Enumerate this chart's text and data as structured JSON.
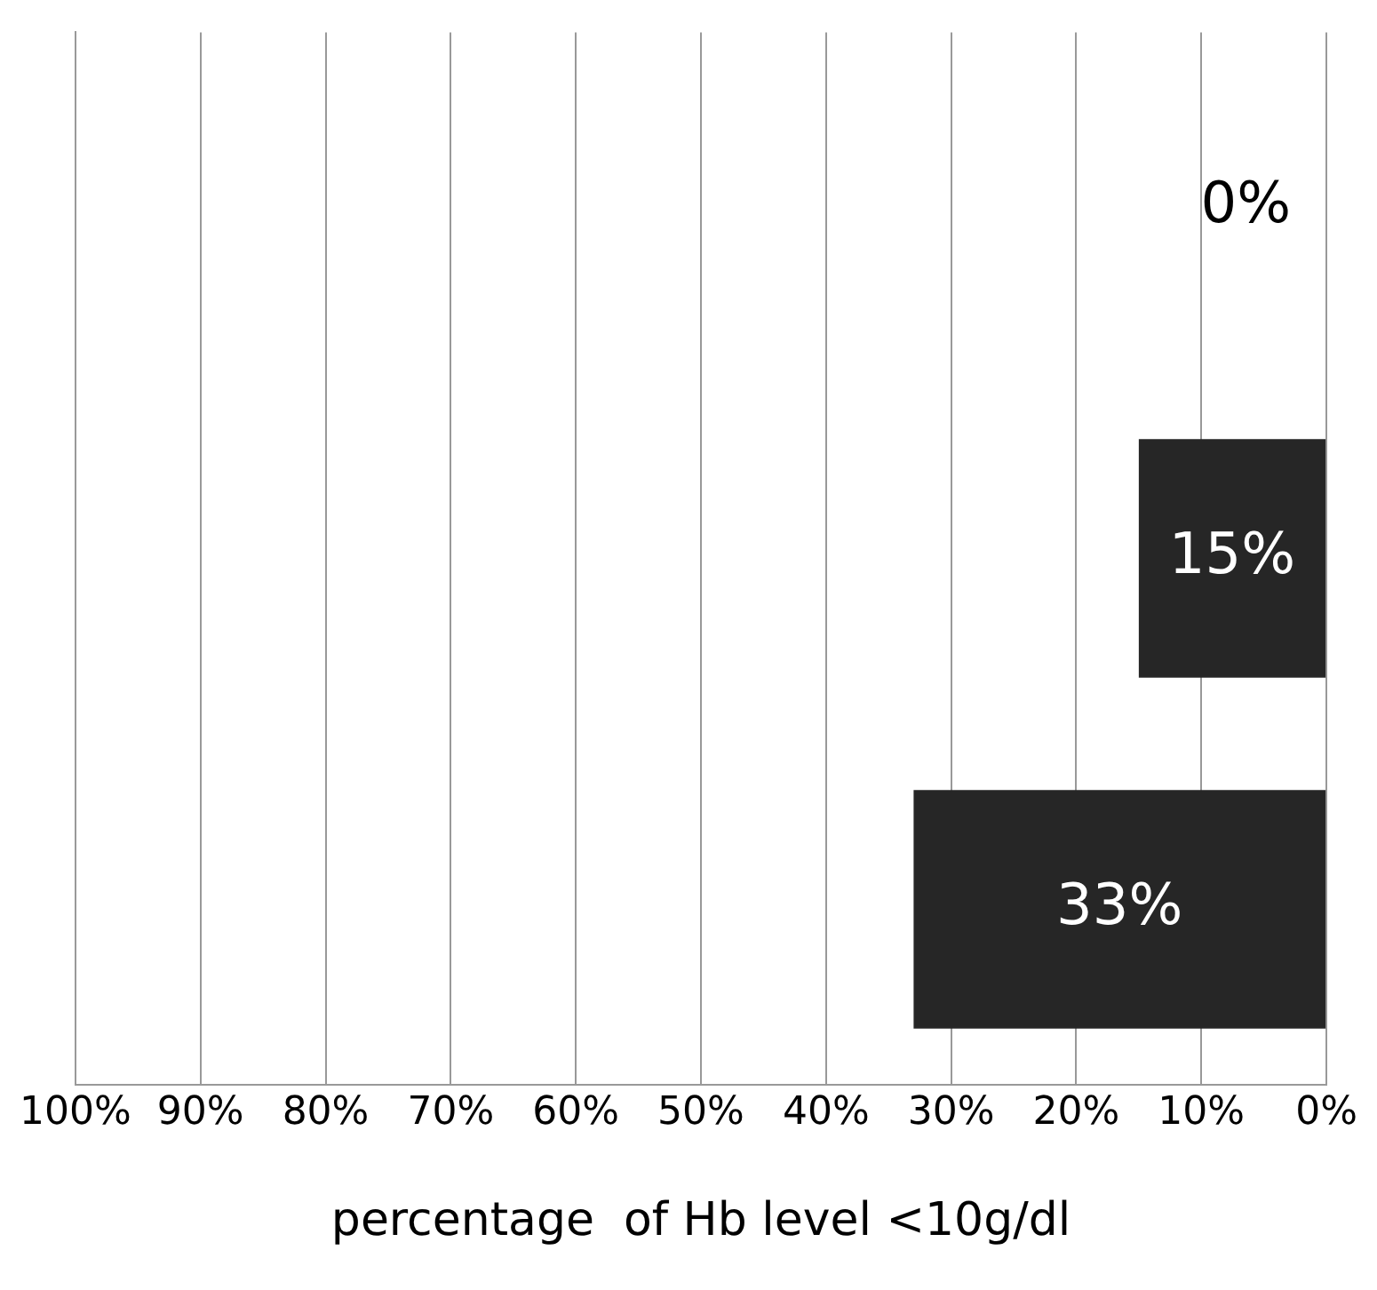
{
  "chart_data": {
    "type": "bar",
    "orientation": "horizontal",
    "xlabel": "percentage  of Hb level <10g/dl",
    "categories": [
      null,
      null,
      null
    ],
    "values": [
      0,
      15,
      33
    ],
    "value_labels": [
      "0%",
      "15%",
      "33%"
    ],
    "color": "#262626",
    "xlim": [
      100,
      0
    ],
    "xticks": [
      {
        "value": 100,
        "label": "100%"
      },
      {
        "value": 90,
        "label": "90%"
      },
      {
        "value": 80,
        "label": "80%"
      },
      {
        "value": 70,
        "label": "70%"
      },
      {
        "value": 60,
        "label": "60%"
      },
      {
        "value": 50,
        "label": "50%"
      },
      {
        "value": 40,
        "label": "40%"
      },
      {
        "value": 30,
        "label": "30%"
      },
      {
        "value": 20,
        "label": "20%"
      },
      {
        "value": 10,
        "label": "10%"
      },
      {
        "value": 0,
        "label": "0%"
      }
    ],
    "grid": "x",
    "legend": false
  }
}
